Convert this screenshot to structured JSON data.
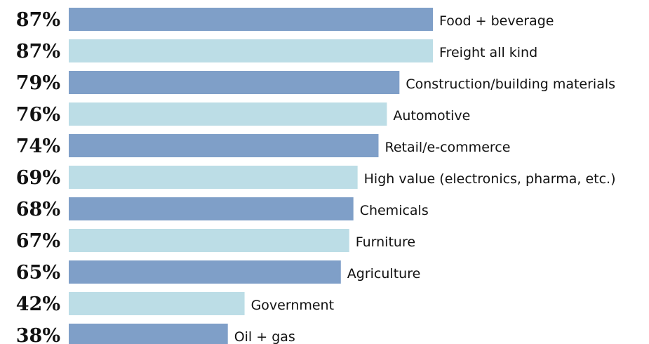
{
  "chart_data": {
    "type": "bar",
    "orientation": "horizontal",
    "categories": [
      "Food + beverage",
      "Freight all kind",
      "Construction/building materials",
      "Automotive",
      "Retail/e-commerce",
      "High value (electronics, pharma, etc.)",
      "Chemicals",
      "Furniture",
      "Agriculture",
      "Government",
      "Oil + gas"
    ],
    "values": [
      87,
      87,
      79,
      76,
      74,
      69,
      68,
      67,
      65,
      42,
      38
    ],
    "value_labels": [
      "87%",
      "87%",
      "79%",
      "76%",
      "74%",
      "69%",
      "68%",
      "67%",
      "65%",
      "42%",
      "38%"
    ],
    "colors": [
      "#7f9fc8",
      "#bcdde6"
    ]
  }
}
